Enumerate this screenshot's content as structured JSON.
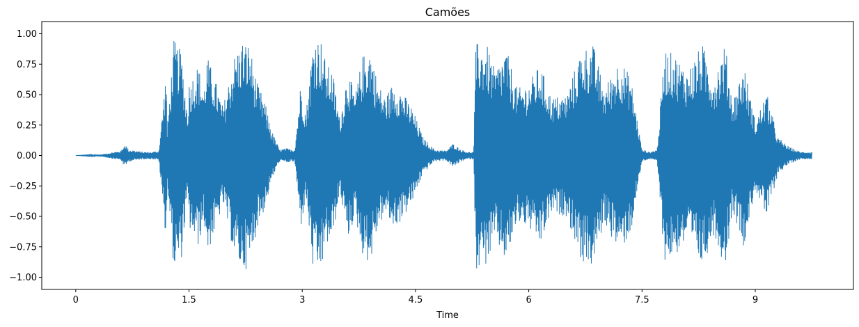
{
  "chart_data": {
    "type": "area",
    "title": "Camões",
    "xlabel": "Time",
    "ylabel": "",
    "xlim": [
      -0.45,
      10.3
    ],
    "ylim": [
      -1.1,
      1.1
    ],
    "x_ticks": [
      0,
      1.5,
      3,
      4.5,
      6,
      7.5,
      9
    ],
    "x_tick_labels": [
      "0",
      "1.5",
      "3",
      "4.5",
      "6",
      "7.5",
      "9"
    ],
    "y_ticks": [
      1.0,
      0.75,
      0.5,
      0.25,
      0.0,
      -0.25,
      -0.5,
      -0.75,
      -1.0
    ],
    "y_tick_labels": [
      "1.00",
      "0.75",
      "0.50",
      "0.25",
      "0.00",
      "−0.25",
      "−0.50",
      "−0.75",
      "−1.00"
    ],
    "grid": false,
    "series": [
      {
        "color": "#1f77b4",
        "envelope_time": [
          0,
          0.35,
          0.6,
          0.65,
          0.7,
          0.8,
          0.9,
          1.0,
          1.1,
          1.2,
          1.21,
          1.22,
          1.3,
          1.4,
          1.48,
          1.5,
          1.62,
          1.7,
          1.74,
          1.85,
          1.95,
          2.1,
          2.2,
          2.3,
          2.4,
          2.5,
          2.6,
          2.7,
          2.8,
          2.9,
          2.98,
          3.05,
          3.15,
          3.25,
          3.32,
          3.4,
          3.5,
          3.6,
          3.7,
          3.8,
          3.9,
          4.0,
          4.1,
          4.2,
          4.3,
          4.45,
          4.6,
          4.75,
          4.9,
          5.0,
          5.1,
          5.2,
          5.27,
          5.3,
          5.45,
          5.55,
          5.7,
          5.85,
          6.0,
          6.15,
          6.3,
          6.5,
          6.7,
          6.85,
          7.0,
          7.2,
          7.35,
          7.5,
          7.6,
          7.7,
          7.8,
          7.95,
          8.1,
          8.3,
          8.45,
          8.6,
          8.7,
          8.85,
          9.0,
          9.15,
          9.3,
          9.45,
          9.6,
          9.75
        ],
        "envelope_amplitude": [
          0.0,
          0.01,
          0.04,
          0.1,
          0.05,
          0.04,
          0.03,
          0.03,
          0.04,
          0.72,
          0.2,
          0.3,
          0.95,
          0.85,
          0.35,
          0.6,
          0.75,
          0.55,
          0.82,
          0.62,
          0.4,
          0.82,
          0.95,
          0.92,
          0.6,
          0.45,
          0.2,
          0.05,
          0.06,
          0.05,
          0.6,
          0.35,
          1.0,
          0.95,
          0.75,
          0.7,
          0.3,
          0.7,
          0.5,
          0.82,
          0.9,
          0.6,
          0.48,
          0.6,
          0.55,
          0.4,
          0.15,
          0.05,
          0.04,
          0.1,
          0.05,
          0.03,
          0.03,
          0.93,
          0.9,
          0.7,
          0.88,
          0.55,
          0.6,
          0.75,
          0.48,
          0.5,
          0.88,
          0.92,
          0.55,
          0.8,
          0.65,
          0.05,
          0.03,
          0.05,
          0.88,
          0.82,
          0.7,
          0.92,
          0.65,
          0.92,
          0.45,
          0.75,
          0.28,
          0.52,
          0.15,
          0.07,
          0.03,
          0.03
        ]
      }
    ]
  }
}
